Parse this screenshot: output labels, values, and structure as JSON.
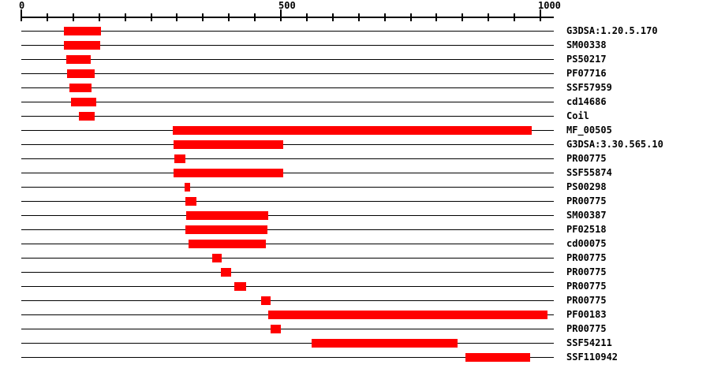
{
  "chart_data": {
    "type": "bar",
    "subtype": "protein-domain-architecture",
    "title": "",
    "xlabel": "",
    "ylabel": "",
    "legend": null,
    "grid": false,
    "bar_color": "#ff0000",
    "line_color": "#000000",
    "axis": {
      "min": 0,
      "max": 1026,
      "major_ticks": [
        0,
        500,
        1000
      ],
      "tick_labels": [
        "0",
        "500",
        "1000"
      ],
      "minor_tick_interval": 50,
      "minor_tick_max": 1000
    },
    "features": [
      {
        "label": "G3DSA:1.20.5.170",
        "start": 82,
        "end": 154
      },
      {
        "label": "SM00338",
        "start": 82,
        "end": 152
      },
      {
        "label": "PS50217",
        "start": 86,
        "end": 134
      },
      {
        "label": "PF07716",
        "start": 88,
        "end": 142
      },
      {
        "label": "SSF57959",
        "start": 92,
        "end": 135
      },
      {
        "label": "cd14686",
        "start": 96,
        "end": 145
      },
      {
        "label": "Coil",
        "start": 111,
        "end": 142
      },
      {
        "label": "MF_00505",
        "start": 292,
        "end": 983
      },
      {
        "label": "G3DSA:3.30.565.10",
        "start": 293,
        "end": 505
      },
      {
        "label": "PR00775",
        "start": 295,
        "end": 316
      },
      {
        "label": "SSF55874",
        "start": 293,
        "end": 504
      },
      {
        "label": "PS00298",
        "start": 314,
        "end": 325
      },
      {
        "label": "PR00775",
        "start": 316,
        "end": 337
      },
      {
        "label": "SM00387",
        "start": 318,
        "end": 476
      },
      {
        "label": "PF02518",
        "start": 316,
        "end": 474
      },
      {
        "label": "cd00075",
        "start": 322,
        "end": 471
      },
      {
        "label": "PR00775",
        "start": 368,
        "end": 386
      },
      {
        "label": "PR00775",
        "start": 385,
        "end": 404
      },
      {
        "label": "PR00775",
        "start": 410,
        "end": 433
      },
      {
        "label": "PR00775",
        "start": 462,
        "end": 480
      },
      {
        "label": "PF00183",
        "start": 476,
        "end": 1014
      },
      {
        "label": "PR00775",
        "start": 480,
        "end": 500
      },
      {
        "label": "SSF54211",
        "start": 559,
        "end": 840
      },
      {
        "label": "SSF110942",
        "start": 856,
        "end": 980
      }
    ]
  }
}
